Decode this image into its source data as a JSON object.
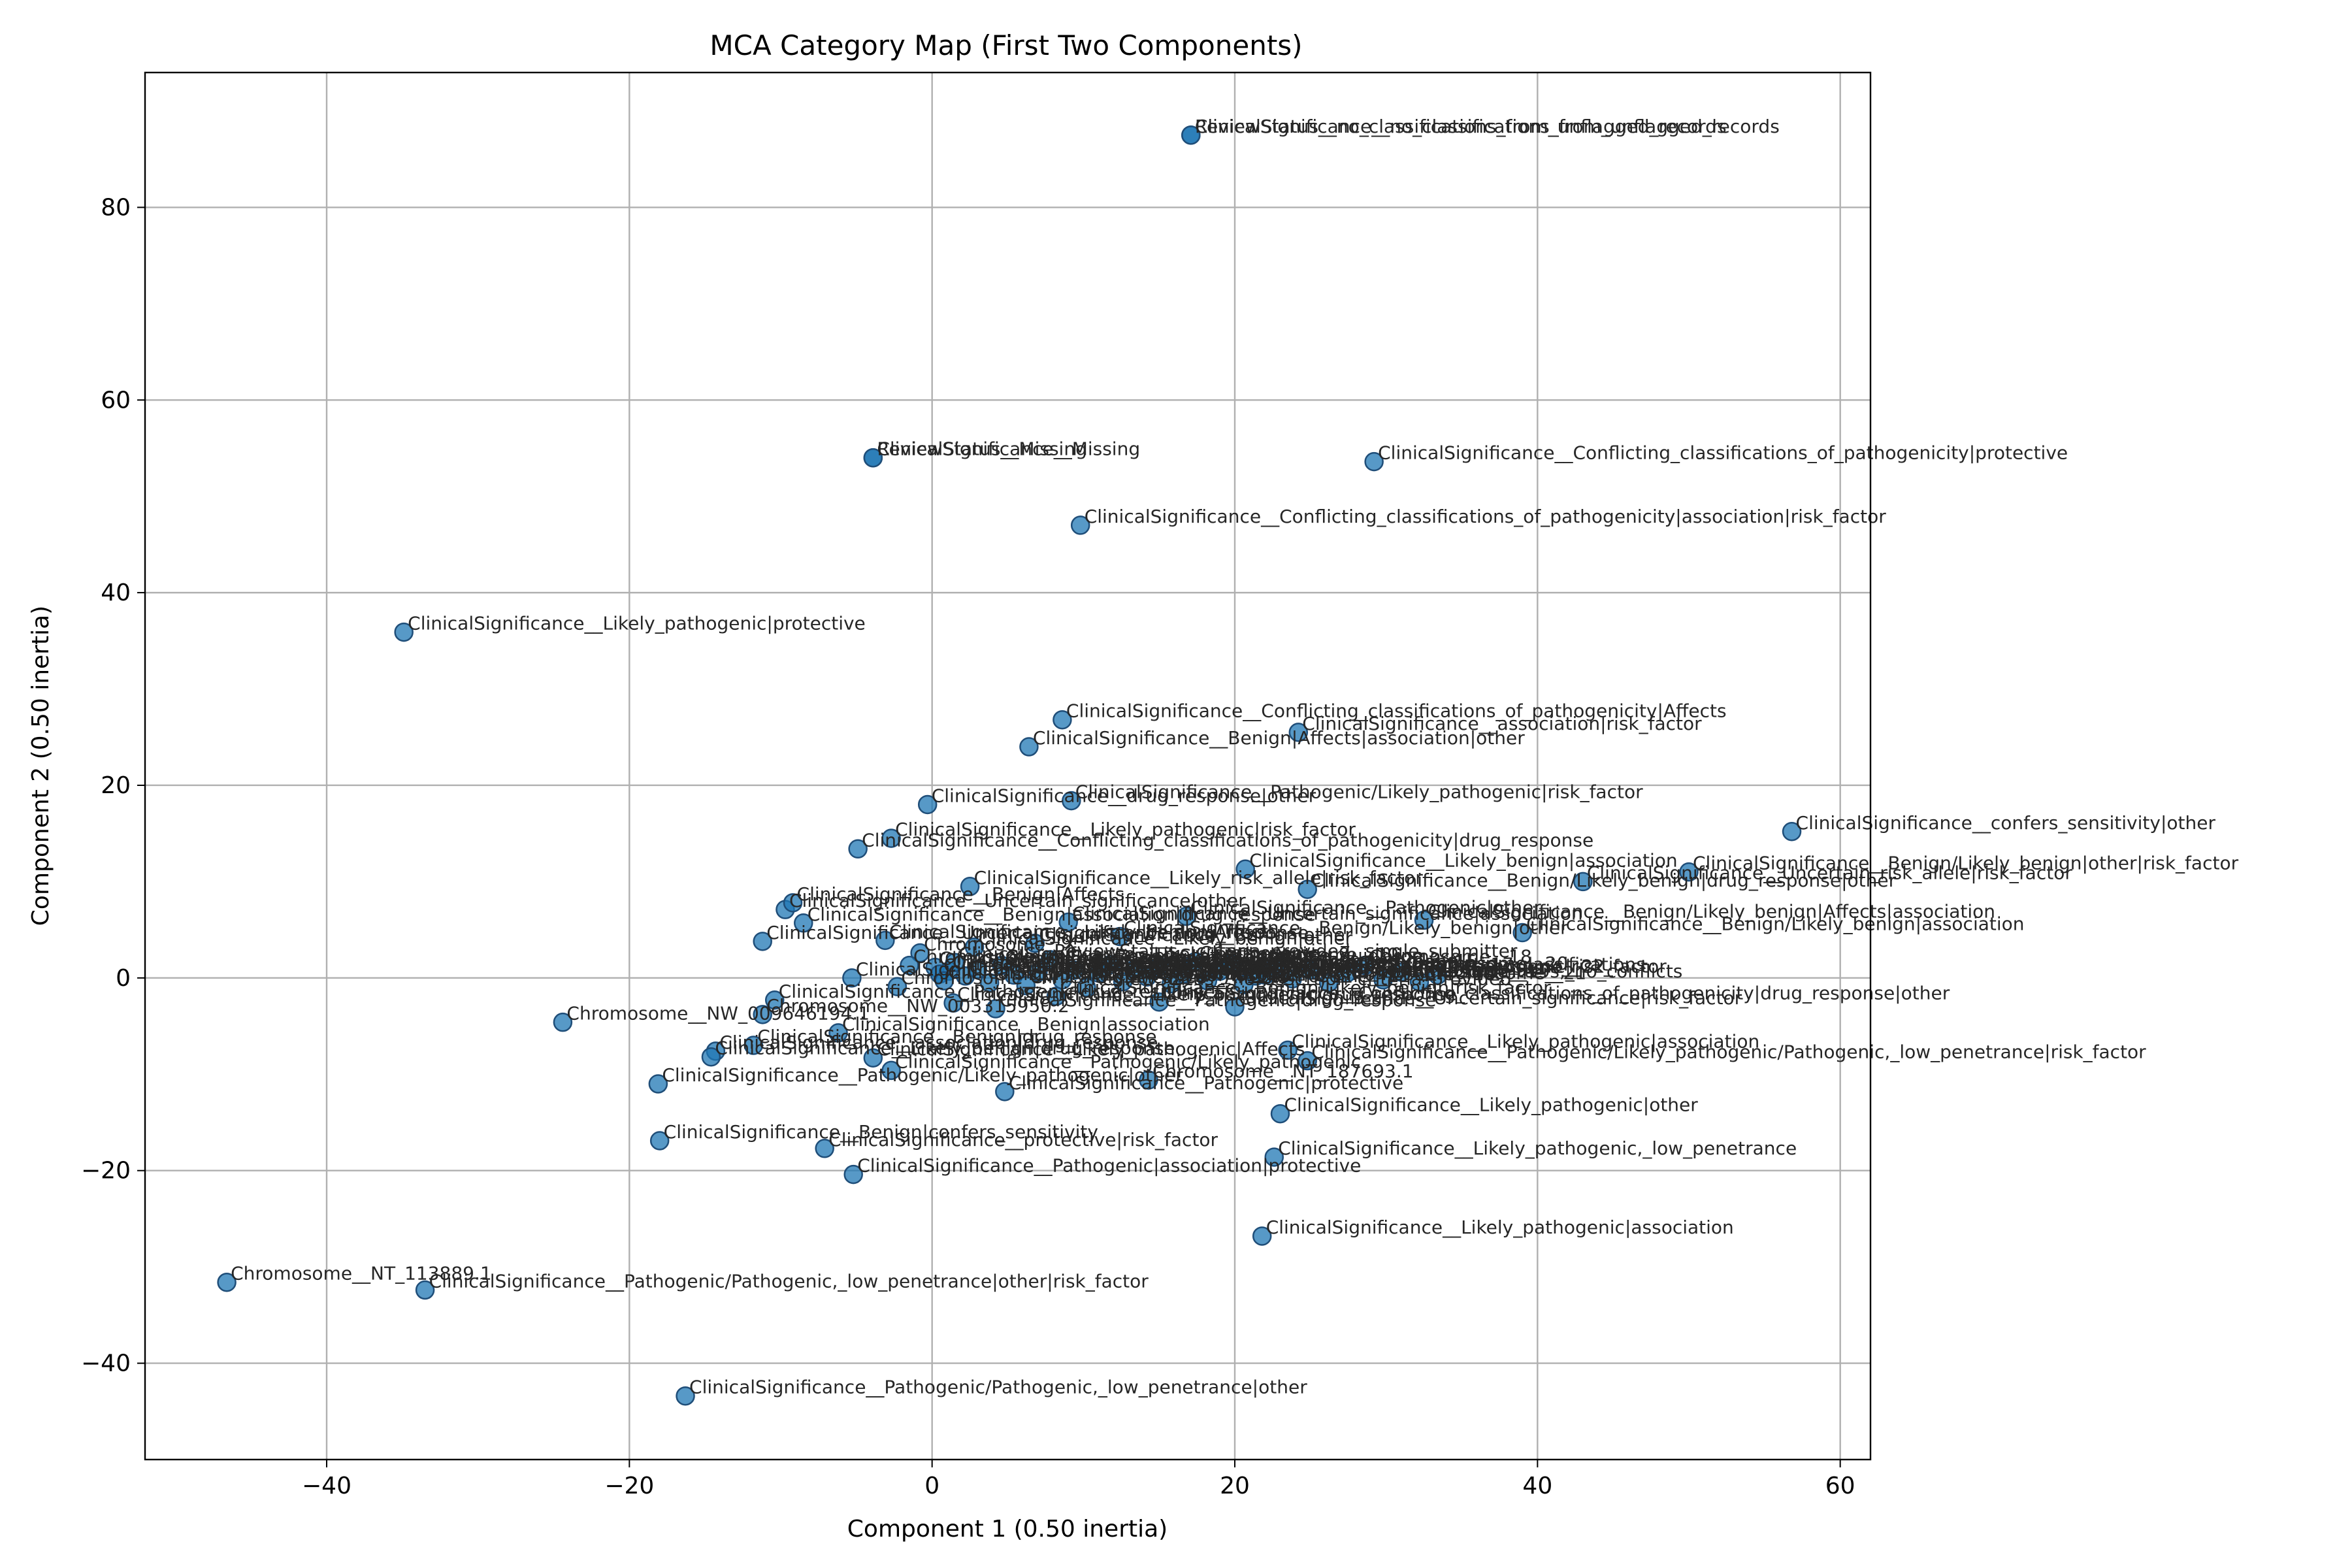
{
  "chart_data": {
    "type": "scatter",
    "title": "MCA Category Map (First Two Components)",
    "xlabel": "Component 1 (0.50 inertia)",
    "ylabel": "Component 2 (0.50 inertia)",
    "xlim": [
      -52,
      62
    ],
    "ylim": [
      -50,
      94
    ],
    "xticks": [
      -40,
      -20,
      0,
      20,
      40,
      60
    ],
    "yticks": [
      -40,
      -20,
      0,
      20,
      40,
      60,
      80
    ],
    "xtick_labels": [
      "−40",
      "−20",
      "0",
      "20",
      "40",
      "60"
    ],
    "ytick_labels": [
      "−40",
      "−20",
      "0",
      "20",
      "40",
      "60",
      "80"
    ],
    "grid": true,
    "marker_color": "#1f77b4",
    "points": [
      {
        "x": 17.1,
        "y": 87.5,
        "label": "ReviewStatus__no_classifications_from_unflagged_records"
      },
      {
        "x": 17.1,
        "y": 87.5,
        "label": "ClinicalSignificance__no_classifications_from_unflagged_records"
      },
      {
        "x": -3.9,
        "y": 54.0,
        "label": "ReviewStatus__Missing"
      },
      {
        "x": -3.9,
        "y": 54.0,
        "label": "ClinicalSignificance__Missing"
      },
      {
        "x": 29.2,
        "y": 53.6,
        "label": "ClinicalSignificance__Conflicting_classifications_of_pathogenicity|protective"
      },
      {
        "x": 9.8,
        "y": 47.0,
        "label": "ClinicalSignificance__Conflicting_classifications_of_pathogenicity|association|risk_factor"
      },
      {
        "x": -34.9,
        "y": 35.9,
        "label": "ClinicalSignificance__Likely_pathogenic|protective"
      },
      {
        "x": 8.6,
        "y": 26.8,
        "label": "ClinicalSignificance__Conflicting_classifications_of_pathogenicity|Affects"
      },
      {
        "x": 24.2,
        "y": 25.5,
        "label": "ClinicalSignificance__association|risk_factor"
      },
      {
        "x": 6.4,
        "y": 24.0,
        "label": "ClinicalSignificance__Benign|Affects|association|other"
      },
      {
        "x": -0.3,
        "y": 18.0,
        "label": "ClinicalSignificance__drug_response|other"
      },
      {
        "x": 9.2,
        "y": 18.4,
        "label": "ClinicalSignificance__Pathogenic/Likely_pathogenic|risk_factor"
      },
      {
        "x": 56.8,
        "y": 15.2,
        "label": "ClinicalSignificance__confers_sensitivity|other"
      },
      {
        "x": -2.7,
        "y": 14.5,
        "label": "ClinicalSignificance__Likely_pathogenic|risk_factor"
      },
      {
        "x": -4.9,
        "y": 13.4,
        "label": "ClinicalSignificance__Conflicting_classifications_of_pathogenicity|drug_response"
      },
      {
        "x": 50.0,
        "y": 11.0,
        "label": "ClinicalSignificance__Benign/Likely_benign|other|risk_factor"
      },
      {
        "x": 20.7,
        "y": 11.3,
        "label": "ClinicalSignificance__Likely_benign|association"
      },
      {
        "x": 43.0,
        "y": 10.0,
        "label": "ClinicalSignificance__Uncertain_risk_allele|risk_factor"
      },
      {
        "x": 2.5,
        "y": 9.5,
        "label": "ClinicalSignificance__Likely_risk_allele|risk_factor"
      },
      {
        "x": 24.8,
        "y": 9.2,
        "label": "ClinicalSignificance__Benign/Likely_benign|drug_response|other"
      },
      {
        "x": -9.7,
        "y": 7.1,
        "label": "ClinicalSignificance__Uncertain_significance|other"
      },
      {
        "x": -9.2,
        "y": 7.8,
        "label": "ClinicalSignificance__Benign|Affects"
      },
      {
        "x": 32.5,
        "y": 6.0,
        "label": "ClinicalSignificance__Benign/Likely_benign|Affects|association"
      },
      {
        "x": -8.5,
        "y": 5.7,
        "label": "ClinicalSignificance__Benign|association|drug_response"
      },
      {
        "x": 39.0,
        "y": 4.7,
        "label": "ClinicalSignificance__Benign/Likely_benign|association"
      },
      {
        "x": -11.2,
        "y": 3.8,
        "label": "ClinicalSignificance__Uncertain_significance|drug_response"
      },
      {
        "x": -3.1,
        "y": 3.9,
        "label": "ClinicalSignificance__Likely_benign|Affects"
      },
      {
        "x": -5.3,
        "y": 0.0,
        "label": "ClinicalSignificance__Conflicting_classifications_of_pathogenicity|other"
      },
      {
        "x": 22.0,
        "y": 0.3,
        "label": "ClinicalSignificance__Pathogenic|risk_factor"
      },
      {
        "x": 15.0,
        "y": -2.5,
        "label": "ClinicalSignificance__Conflicting_classifications_of_pathogenicity|drug_response|other"
      },
      {
        "x": 20.0,
        "y": -3.0,
        "label": "ClinicalSignificance__Uncertain_significance|risk_factor"
      },
      {
        "x": -10.4,
        "y": -2.3,
        "label": "ClinicalSignificance__Pathogenic|drug_response"
      },
      {
        "x": -11.2,
        "y": -3.8,
        "label": "Chromosome__NW_003315950.2"
      },
      {
        "x": -24.4,
        "y": -4.6,
        "label": "Chromosome__NW_009646194.1"
      },
      {
        "x": -6.2,
        "y": -5.7,
        "label": "ClinicalSignificance__Benign|association"
      },
      {
        "x": -14.3,
        "y": -7.6,
        "label": "ClinicalSignificance__association|drug_response"
      },
      {
        "x": -14.6,
        "y": -8.2,
        "label": "ClinicalSignificance__Likely_benign|drug_response"
      },
      {
        "x": -11.8,
        "y": -7.0,
        "label": "ClinicalSignificance__Benign|drug_response"
      },
      {
        "x": -3.9,
        "y": -8.3,
        "label": "ClinicalSignificance__Likely_pathogenic|Affects"
      },
      {
        "x": 23.5,
        "y": -7.5,
        "label": "ClinicalSignificance__Likely_pathogenic|association"
      },
      {
        "x": 24.8,
        "y": -8.6,
        "label": "ClinicalSignificance__Pathogenic/Likely_pathogenic/Pathogenic,_low_penetrance|risk_factor"
      },
      {
        "x": -2.7,
        "y": -9.6,
        "label": "ClinicalSignificance__Pathogenic/Likely_pathogenic"
      },
      {
        "x": 14.3,
        "y": -10.6,
        "label": "Chromosome__NT_187693.1"
      },
      {
        "x": -18.1,
        "y": -11.0,
        "label": "ClinicalSignificance__Pathogenic/Likely_pathogenic|other"
      },
      {
        "x": 4.8,
        "y": -11.8,
        "label": "ClinicalSignificance__Pathogenic|protective"
      },
      {
        "x": 23.0,
        "y": -14.1,
        "label": "ClinicalSignificance__Likely_pathogenic|other"
      },
      {
        "x": -18.0,
        "y": -16.9,
        "label": "ClinicalSignificance__Benign|confers_sensitivity"
      },
      {
        "x": -7.1,
        "y": -17.7,
        "label": "ClinicalSignificance__protective|risk_factor"
      },
      {
        "x": 22.6,
        "y": -18.6,
        "label": "ClinicalSignificance__Likely_pathogenic,_low_penetrance"
      },
      {
        "x": -5.2,
        "y": -20.4,
        "label": "ClinicalSignificance__Pathogenic|association|protective"
      },
      {
        "x": 21.8,
        "y": -26.8,
        "label": "ClinicalSignificance__Likely_pathogenic|association"
      },
      {
        "x": -46.6,
        "y": -31.6,
        "label": "Chromosome__NT_113889.1"
      },
      {
        "x": -33.5,
        "y": -32.4,
        "label": "ClinicalSignificance__Pathogenic/Pathogenic,_low_penetrance|other|risk_factor"
      },
      {
        "x": -16.3,
        "y": -43.4,
        "label": "ClinicalSignificance__Pathogenic/Pathogenic,_low_penetrance|other"
      },
      {
        "x": 0.2,
        "y": 1.1,
        "label": "ClinicalSignificance__Benign"
      },
      {
        "x": 0.5,
        "y": 0.4,
        "label": "ClinicalSignificance__Likely_benign"
      },
      {
        "x": 1.1,
        "y": 0.7,
        "label": "ClinicalSignificance__Uncertain_significance"
      },
      {
        "x": 0.8,
        "y": -0.3,
        "label": "ClinicalSignificance__Pathogenic"
      },
      {
        "x": 1.5,
        "y": 1.6,
        "label": "ClinicalSignificance__Likely_pathogenic"
      },
      {
        "x": 2.2,
        "y": 0.2,
        "label": "ClinicalSignificance__not_provided"
      },
      {
        "x": 3.0,
        "y": 0.9,
        "label": "ClinicalSignificance__drug_response"
      },
      {
        "x": 3.8,
        "y": -0.5,
        "label": "ClinicalSignificance__risk_factor"
      },
      {
        "x": 4.6,
        "y": 1.3,
        "label": "ClinicalSignificance__association"
      },
      {
        "x": 5.4,
        "y": 0.3,
        "label": "ClinicalSignificance__protective"
      },
      {
        "x": 6.2,
        "y": -0.8,
        "label": "ClinicalSignificance__Affects"
      },
      {
        "x": 7.0,
        "y": 0.6,
        "label": "ClinicalSignificance__other"
      },
      {
        "x": 7.8,
        "y": 1.9,
        "label": "ReviewStatus__criteria_provided,_single_submitter"
      },
      {
        "x": 8.6,
        "y": -0.2,
        "label": "ReviewStatus__criteria_provided,_multiple_submitters,_no_conflicts"
      },
      {
        "x": 9.4,
        "y": 0.8,
        "label": "ReviewStatus__reviewed_by_expert_panel"
      },
      {
        "x": 10.2,
        "y": -1.0,
        "label": "ReviewStatus__no_assertion_criteria_provided"
      },
      {
        "x": 11.0,
        "y": 0.5,
        "label": "ReviewStatus__criteria_provided,_conflicting_classifications"
      },
      {
        "x": 11.8,
        "y": 1.4,
        "label": "ReviewStatus__practice_guideline"
      },
      {
        "x": 12.6,
        "y": -0.4,
        "label": "Chromosome__1"
      },
      {
        "x": 13.4,
        "y": 0.9,
        "label": "Chromosome__2"
      },
      {
        "x": 14.2,
        "y": 0.1,
        "label": "Chromosome__3"
      },
      {
        "x": 15.0,
        "y": 1.2,
        "label": "Chromosome__4"
      },
      {
        "x": 15.8,
        "y": -0.6,
        "label": "Chromosome__5"
      },
      {
        "x": 16.6,
        "y": 0.4,
        "label": "Chromosome__6"
      },
      {
        "x": 17.4,
        "y": 1.7,
        "label": "Chromosome__7"
      },
      {
        "x": 18.2,
        "y": -0.3,
        "label": "Chromosome__8"
      },
      {
        "x": 19.0,
        "y": 0.7,
        "label": "Chromosome__9"
      },
      {
        "x": 19.8,
        "y": 1.5,
        "label": "Chromosome__10"
      },
      {
        "x": 20.6,
        "y": -0.7,
        "label": "Chromosome__11"
      },
      {
        "x": 21.4,
        "y": 0.2,
        "label": "Chromosome__12"
      },
      {
        "x": 22.6,
        "y": 1.0,
        "label": "Chromosome__13"
      },
      {
        "x": 23.8,
        "y": -0.1,
        "label": "Chromosome__14"
      },
      {
        "x": 25.0,
        "y": 0.8,
        "label": "Chromosome__15"
      },
      {
        "x": 26.2,
        "y": -0.5,
        "label": "Chromosome__16"
      },
      {
        "x": 27.4,
        "y": 0.5,
        "label": "Chromosome__17"
      },
      {
        "x": 28.6,
        "y": 1.3,
        "label": "Chromosome__18"
      },
      {
        "x": 29.8,
        "y": -0.2,
        "label": "Chromosome__19"
      },
      {
        "x": 31.0,
        "y": 0.6,
        "label": "Chromosome__20"
      },
      {
        "x": 32.2,
        "y": -0.4,
        "label": "Chromosome__21"
      },
      {
        "x": 33.4,
        "y": 0.3,
        "label": "Chromosome__22"
      },
      {
        "x": -0.8,
        "y": 2.6,
        "label": "Chromosome__X"
      },
      {
        "x": -1.5,
        "y": 1.3,
        "label": "Chromosome__Y"
      },
      {
        "x": -2.3,
        "y": -0.9,
        "label": "Chromosome__MT"
      },
      {
        "x": 4.2,
        "y": -3.2,
        "label": "ClinicalSignificance__Pathogenic|drug_response"
      },
      {
        "x": 2.8,
        "y": 3.2,
        "label": "ClinicalSignificance__Likely_benign|other"
      },
      {
        "x": 6.8,
        "y": 3.6,
        "label": "ClinicalSignificance__Benign|other"
      },
      {
        "x": 9.0,
        "y": 5.8,
        "label": "ClinicalSignificance__Uncertain_significance|association"
      },
      {
        "x": 12.4,
        "y": 4.3,
        "label": "ClinicalSignificance__Benign/Likely_benign|other"
      },
      {
        "x": 16.8,
        "y": 6.4,
        "label": "ClinicalSignificance__Pathogenic|other"
      },
      {
        "x": 1.4,
        "y": -2.6,
        "label": "ClinicalSignificance__Likely_pathogenic|drug_response"
      },
      {
        "x": 8.2,
        "y": -1.9,
        "label": "ClinicalSignificance__Benign/Likely_benign|risk_factor"
      }
    ]
  }
}
